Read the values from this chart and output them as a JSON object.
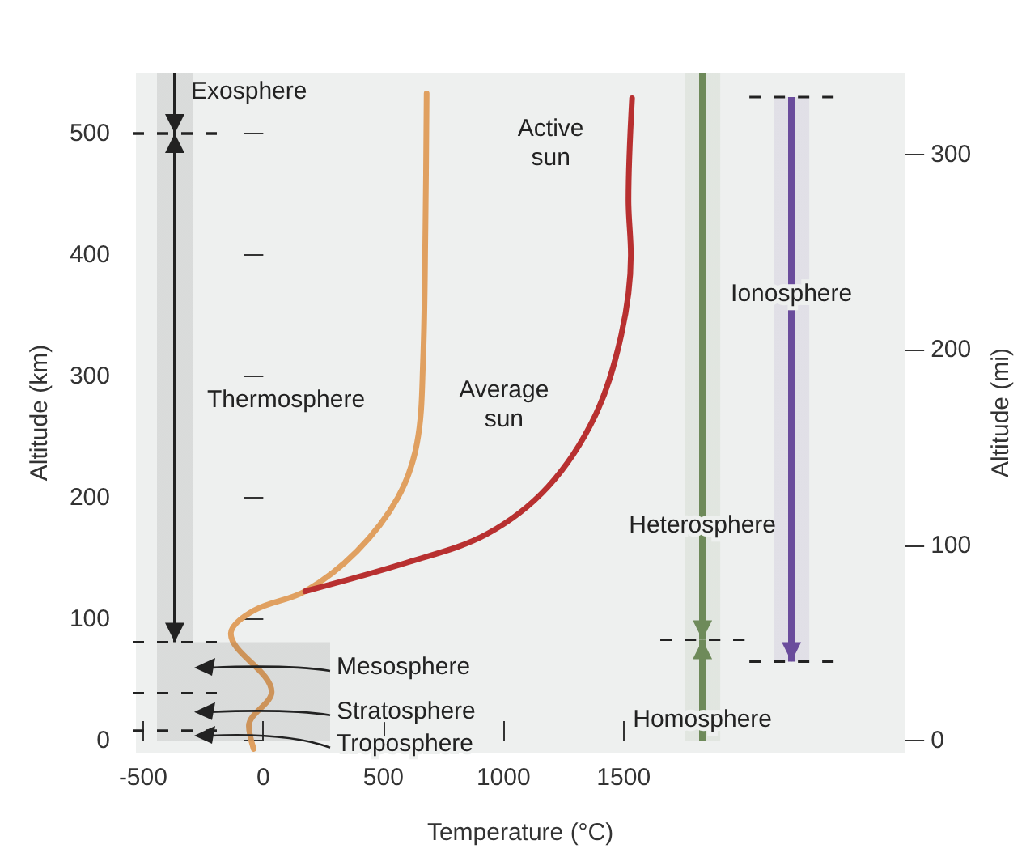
{
  "chart_data": {
    "type": "line",
    "xlabel": "Temperature (°C)",
    "ylabel": "Altitude (km)",
    "y2label": "Altitude (mi)",
    "xlim": [
      -530,
      2670
    ],
    "xticks": [
      -500,
      0,
      500,
      1000,
      1500
    ],
    "ylim": [
      -10,
      550
    ],
    "yticks": [
      0,
      100,
      200,
      300,
      400,
      500
    ],
    "y2lim": [
      -6.2,
      341.8
    ],
    "y2ticks": [
      0,
      100,
      200,
      300
    ],
    "series": [
      {
        "name": "Average sun",
        "color": "#e0a060",
        "x": [
          -40,
          -60,
          35,
          -135,
          -40,
          175,
          390,
          560,
          640,
          665,
          675,
          680
        ],
        "values": [
          -7,
          12,
          40,
          88,
          107,
          123,
          156,
          200,
          245,
          312,
          423,
          533
        ]
      },
      {
        "name": "Active sun",
        "color": "#b83030",
        "x": [
          175,
          605,
          930,
          1185,
          1380,
          1490,
          1530,
          1520,
          1535
        ],
        "values": [
          123,
          147,
          170,
          209,
          267,
          334,
          400,
          445,
          529
        ]
      }
    ],
    "bands": [
      {
        "axis": "y",
        "from": 500,
        "to": 550,
        "label": "Exosphere"
      },
      {
        "axis": "y",
        "from": 81,
        "to": 500,
        "label": "Thermosphere"
      },
      {
        "axis": "y",
        "from": 39,
        "to": 81,
        "label": "Mesosphere"
      },
      {
        "axis": "y",
        "from": 8,
        "to": 39,
        "label": "Stratosphere"
      },
      {
        "axis": "y",
        "from": 0,
        "to": 8,
        "label": "Troposphere"
      },
      {
        "axis": "y",
        "from": 83,
        "to": 550,
        "label": "Heterosphere",
        "color": "#6e8a5a"
      },
      {
        "axis": "y",
        "from": 0,
        "to": 83,
        "label": "Homosphere",
        "color": "#6e8a5a"
      },
      {
        "axis": "y",
        "from": 65,
        "to": 530,
        "label": "Ionosphere",
        "color": "#6a4c9c"
      }
    ]
  }
}
